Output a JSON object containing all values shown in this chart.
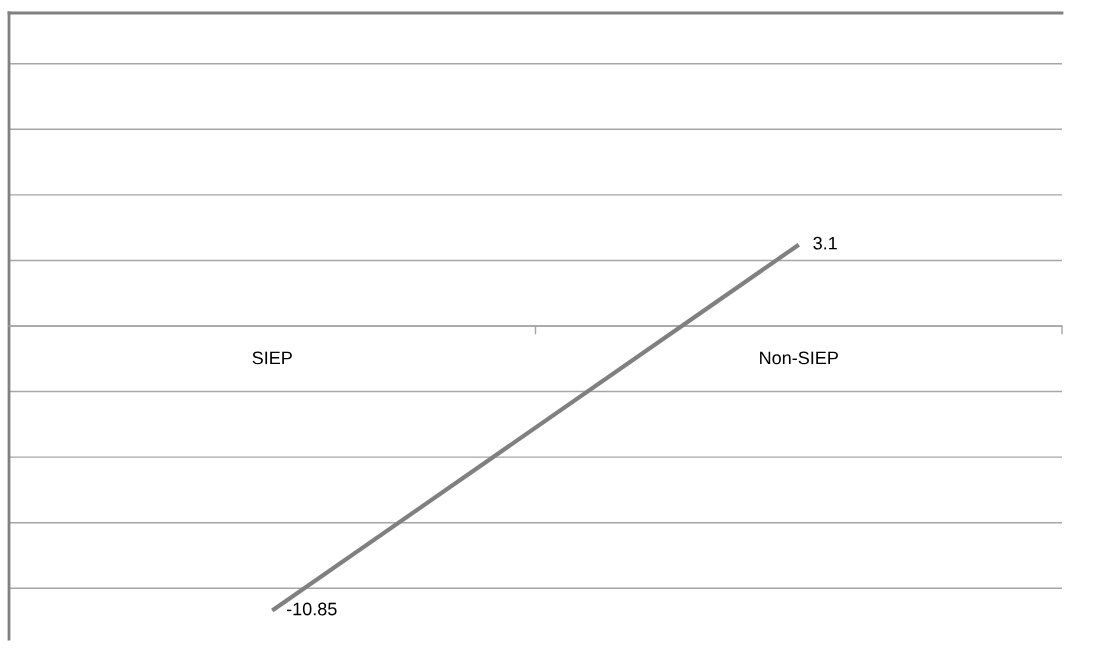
{
  "chart_data": {
    "type": "line",
    "categories": [
      "SIEP",
      "Non-SIEP"
    ],
    "series": [
      {
        "color": "#808080",
        "values": [
          -10.85,
          3.1
        ]
      }
    ],
    "grid": "y",
    "tick_labels": "x",
    "data_labels": true,
    "marker": "none",
    "line_style": "solid"
  }
}
